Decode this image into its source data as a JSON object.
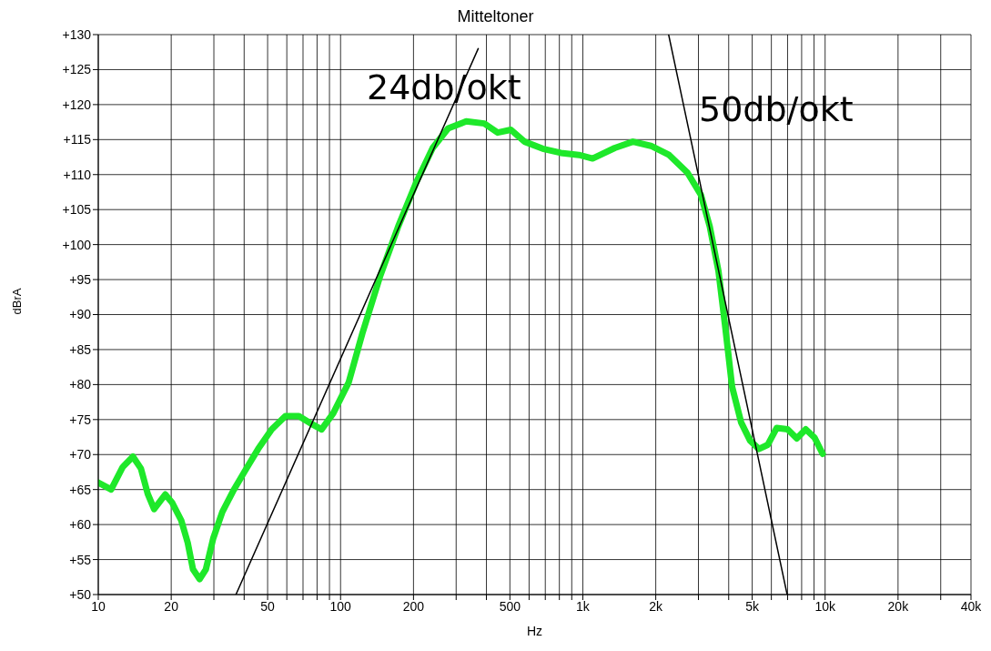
{
  "chart_data": {
    "type": "line",
    "title": "Mitteltoner",
    "xlabel": "Hz",
    "ylabel": "dBrA",
    "log": "x",
    "grid": true,
    "marker": "none",
    "line_style": "solid",
    "xlim": [
      10,
      40000
    ],
    "ylim": [
      50,
      130
    ],
    "xticks": [
      10,
      20,
      {
        "value": 30,
        "label": null
      },
      {
        "value": 40,
        "label": null
      },
      50,
      {
        "value": 60,
        "label": null
      },
      {
        "value": 70,
        "label": null
      },
      {
        "value": 80,
        "label": null
      },
      {
        "value": 90,
        "label": null
      },
      100,
      200,
      {
        "value": 300,
        "label": null
      },
      {
        "value": 400,
        "label": null
      },
      500,
      {
        "value": 600,
        "label": null
      },
      {
        "value": 700,
        "label": null
      },
      {
        "value": 800,
        "label": null
      },
      {
        "value": 900,
        "label": null
      },
      {
        "value": 1000,
        "label": "1k"
      },
      {
        "value": 2000,
        "label": "2k"
      },
      {
        "value": 3000,
        "label": null
      },
      {
        "value": 4000,
        "label": null
      },
      {
        "value": 5000,
        "label": "5k"
      },
      {
        "value": 6000,
        "label": null
      },
      {
        "value": 7000,
        "label": null
      },
      {
        "value": 8000,
        "label": null
      },
      {
        "value": 9000,
        "label": null
      },
      {
        "value": 10000,
        "label": "10k"
      },
      {
        "value": 20000,
        "label": "20k"
      },
      {
        "value": 30000,
        "label": null
      },
      {
        "value": 40000,
        "label": "40k"
      }
    ],
    "yticks": [
      {
        "value": 50,
        "label": "+50"
      },
      {
        "value": 55,
        "label": "+55"
      },
      {
        "value": 60,
        "label": "+60"
      },
      {
        "value": 65,
        "label": "+65"
      },
      {
        "value": 70,
        "label": "+70"
      },
      {
        "value": 75,
        "label": "+75"
      },
      {
        "value": 80,
        "label": "+80"
      },
      {
        "value": 85,
        "label": "+85"
      },
      {
        "value": 90,
        "label": "+90"
      },
      {
        "value": 95,
        "label": "+95"
      },
      {
        "value": 100,
        "label": "+100"
      },
      {
        "value": 105,
        "label": "+105"
      },
      {
        "value": 110,
        "label": "+110"
      },
      {
        "value": 115,
        "label": "+115"
      },
      {
        "value": 120,
        "label": "+120"
      },
      {
        "value": 125,
        "label": "+125"
      },
      {
        "value": 130,
        "label": "+130"
      }
    ],
    "annotations": [
      "24db/okt",
      "50db/okt"
    ],
    "series": [
      {
        "color": "#1ee82a",
        "x": [
          10,
          11.3,
          12.6,
          13.9,
          15,
          16,
          17,
          18.9,
          20.2,
          22,
          23.4,
          24.6,
          26.2,
          27.8,
          29.8,
          32.5,
          36.3,
          40.2,
          45.7,
          52,
          59.2,
          67.3,
          76.6,
          83.5,
          93.3,
          108,
          123,
          146,
          173,
          206,
          240,
          278,
          330,
          392,
          445,
          505,
          575,
          683,
          811,
          964,
          1097,
          1355,
          1610,
          1910,
          2270,
          2700,
          3070,
          3340,
          3630,
          3860,
          4130,
          4500,
          4900,
          5330,
          5800,
          6310,
          7000,
          7640,
          8320,
          9050,
          9770
        ],
        "values": [
          66,
          65,
          68.2,
          69.7,
          68,
          64.4,
          62.2,
          64.3,
          63.1,
          60.6,
          57.4,
          53.6,
          52.2,
          53.6,
          58,
          61.8,
          65,
          67.6,
          70.8,
          73.6,
          75.5,
          75.5,
          74.3,
          73.6,
          75.9,
          80.3,
          87.3,
          95.6,
          102.6,
          109,
          113.8,
          116.6,
          117.6,
          117.3,
          116,
          116.4,
          114.7,
          113.7,
          113.1,
          112.8,
          112.3,
          113.8,
          114.7,
          114.1,
          112.8,
          110.3,
          107.1,
          102.6,
          96.2,
          88.6,
          79.7,
          74.6,
          72,
          70.8,
          71.4,
          73.8,
          73.6,
          72.3,
          73.6,
          72.4,
          70.1
        ]
      },
      {
        "type": "line",
        "color": "#000000",
        "x": [
          37,
          370
        ],
        "values": [
          50,
          128
        ]
      },
      {
        "type": "line",
        "color": "#000000",
        "x": [
          2260,
          6970
        ],
        "values": [
          130,
          50
        ]
      }
    ]
  }
}
